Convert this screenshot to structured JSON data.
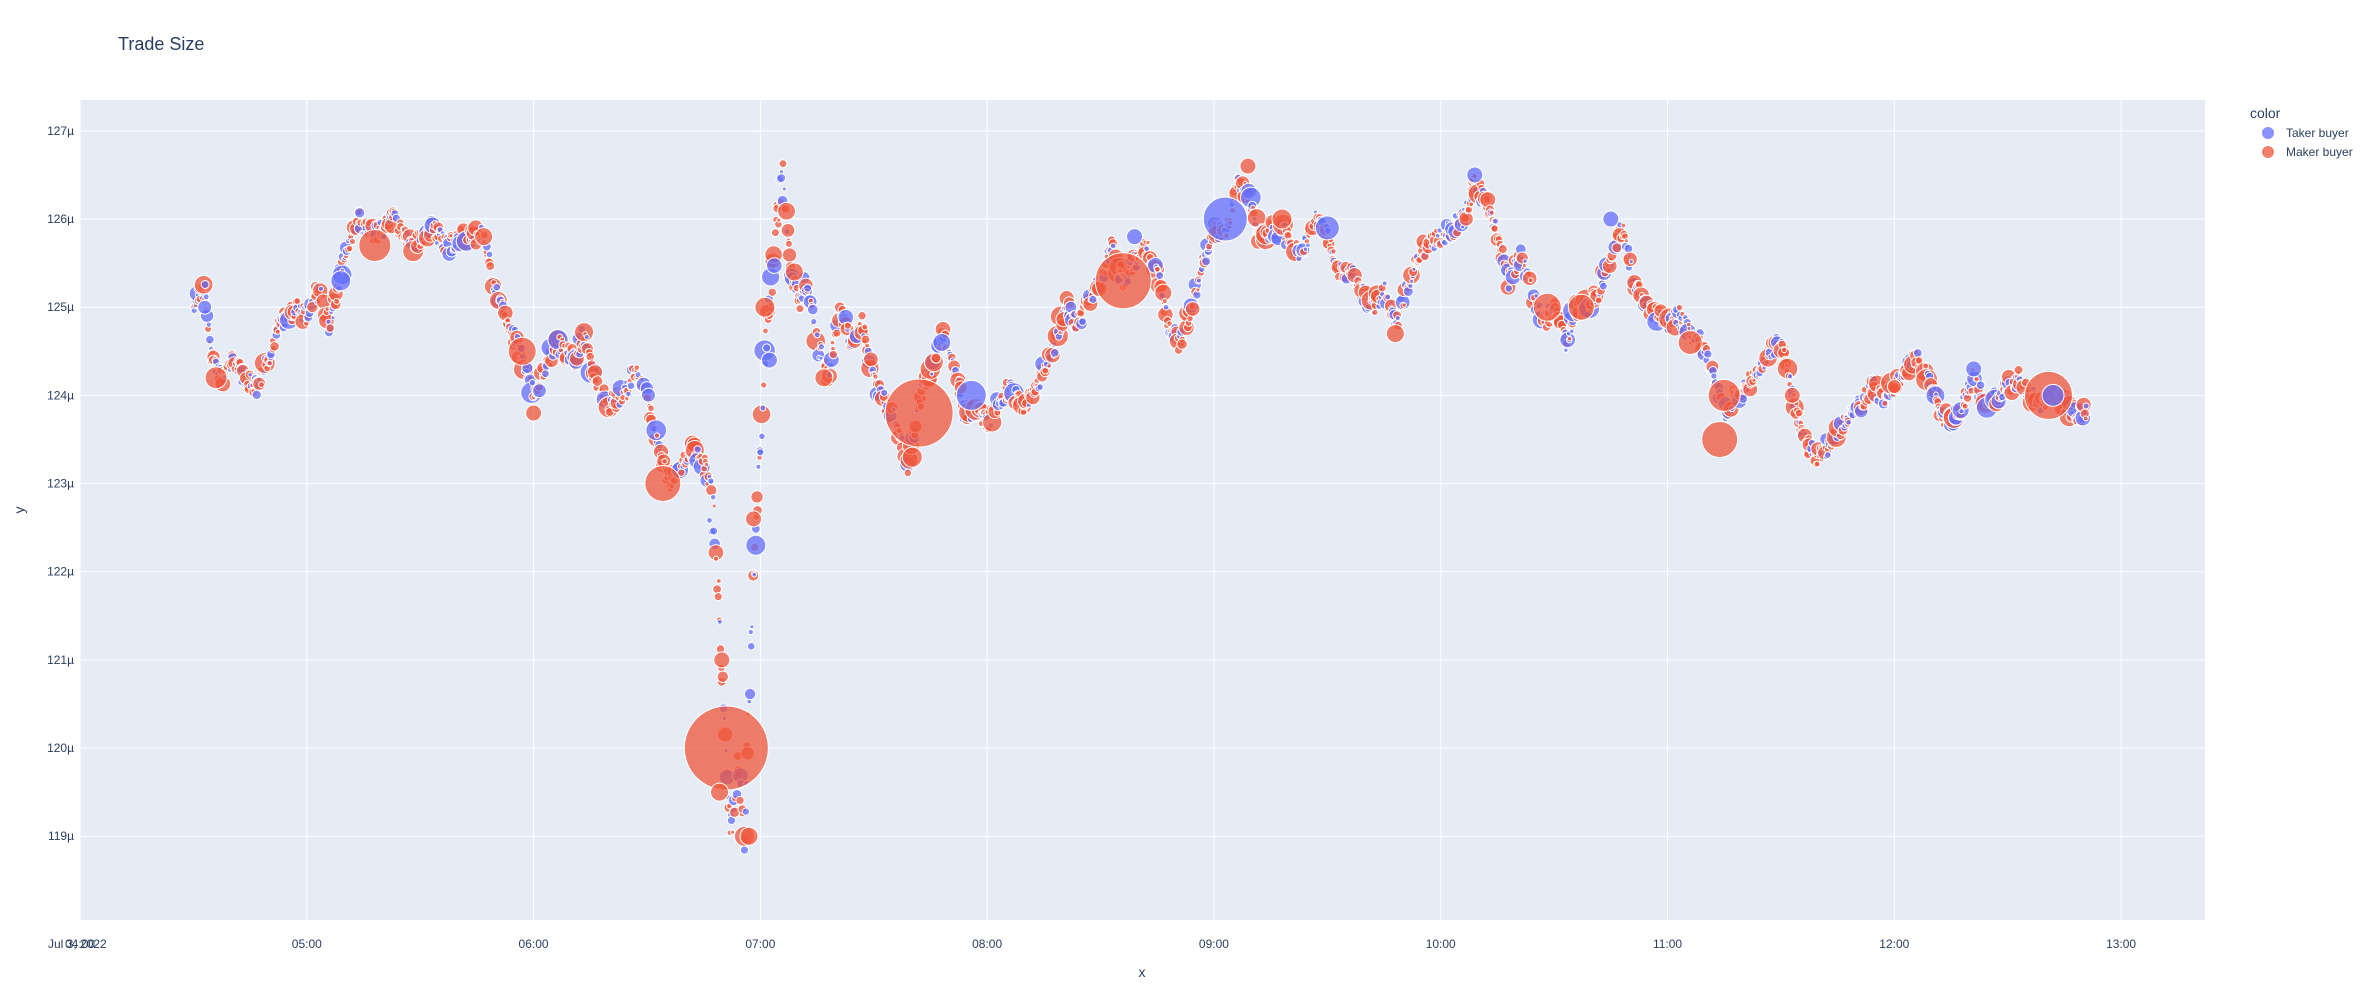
{
  "chart_data": {
    "type": "scatter",
    "title": "Trade Size",
    "xlabel": "x",
    "ylabel": "y",
    "x_date_label": "Jul 3, 2022",
    "x_ticks": [
      "04:00",
      "05:00",
      "06:00",
      "07:00",
      "08:00",
      "09:00",
      "10:00",
      "11:00",
      "12:00",
      "13:00"
    ],
    "x_range_hours": [
      4.0,
      13.37
    ],
    "y_ticks": [
      "119µ",
      "120µ",
      "121µ",
      "122µ",
      "123µ",
      "124µ",
      "125µ",
      "126µ",
      "127µ"
    ],
    "y_tick_values": [
      119,
      120,
      121,
      122,
      123,
      124,
      125,
      126,
      127
    ],
    "y_range": [
      118.05,
      127.35
    ],
    "y_unit": "µ",
    "legend_title": "color",
    "legend_position": "top-right",
    "colors": {
      "taker": "#636efa",
      "maker": "#ef553b",
      "plot_bg": "#e5ecf6",
      "grid": "#ffffff",
      "text": "#2a3f5f"
    },
    "series": [
      {
        "name": "Taker buyer",
        "key": "taker"
      },
      {
        "name": "Maker buyer",
        "key": "maker"
      }
    ],
    "price_path": [
      [
        4.5,
        125.0
      ],
      [
        4.55,
        125.2
      ],
      [
        4.58,
        124.4
      ],
      [
        4.62,
        124.2
      ],
      [
        4.68,
        124.4
      ],
      [
        4.72,
        124.2
      ],
      [
        4.78,
        124.1
      ],
      [
        4.83,
        124.4
      ],
      [
        4.88,
        124.8
      ],
      [
        4.95,
        125.0
      ],
      [
        5.0,
        124.9
      ],
      [
        5.05,
        125.2
      ],
      [
        5.1,
        124.8
      ],
      [
        5.17,
        125.6
      ],
      [
        5.22,
        126.0
      ],
      [
        5.3,
        125.8
      ],
      [
        5.38,
        126.0
      ],
      [
        5.45,
        125.7
      ],
      [
        5.55,
        125.9
      ],
      [
        5.62,
        125.7
      ],
      [
        5.7,
        125.8
      ],
      [
        5.78,
        125.8
      ],
      [
        5.83,
        125.2
      ],
      [
        5.9,
        124.8
      ],
      [
        5.95,
        124.4
      ],
      [
        6.0,
        124.0
      ],
      [
        6.05,
        124.3
      ],
      [
        6.1,
        124.6
      ],
      [
        6.18,
        124.4
      ],
      [
        6.22,
        124.7
      ],
      [
        6.28,
        124.1
      ],
      [
        6.33,
        123.9
      ],
      [
        6.4,
        124.0
      ],
      [
        6.45,
        124.3
      ],
      [
        6.5,
        124.0
      ],
      [
        6.55,
        123.4
      ],
      [
        6.6,
        123.0
      ],
      [
        6.65,
        123.2
      ],
      [
        6.7,
        123.4
      ],
      [
        6.75,
        123.2
      ],
      [
        6.8,
        122.5
      ],
      [
        6.83,
        121.0
      ],
      [
        6.85,
        120.0
      ],
      [
        6.87,
        119.0
      ],
      [
        6.9,
        119.8
      ],
      [
        6.93,
        119.0
      ],
      [
        6.95,
        120.5
      ],
      [
        6.97,
        122.0
      ],
      [
        7.0,
        123.5
      ],
      [
        7.03,
        124.8
      ],
      [
        7.07,
        125.9
      ],
      [
        7.1,
        126.5
      ],
      [
        7.13,
        125.5
      ],
      [
        7.17,
        125.0
      ],
      [
        7.2,
        125.3
      ],
      [
        7.25,
        124.6
      ],
      [
        7.3,
        124.2
      ],
      [
        7.35,
        125.0
      ],
      [
        7.4,
        124.6
      ],
      [
        7.45,
        124.8
      ],
      [
        7.5,
        124.2
      ],
      [
        7.55,
        123.9
      ],
      [
        7.6,
        123.7
      ],
      [
        7.65,
        123.2
      ],
      [
        7.7,
        123.9
      ],
      [
        7.75,
        124.3
      ],
      [
        7.8,
        124.7
      ],
      [
        7.85,
        124.4
      ],
      [
        7.9,
        123.8
      ],
      [
        7.95,
        123.8
      ],
      [
        8.0,
        123.7
      ],
      [
        8.05,
        123.9
      ],
      [
        8.1,
        124.1
      ],
      [
        8.15,
        123.9
      ],
      [
        8.2,
        124.0
      ],
      [
        8.25,
        124.3
      ],
      [
        8.3,
        124.6
      ],
      [
        8.35,
        125.0
      ],
      [
        8.4,
        124.8
      ],
      [
        8.45,
        125.1
      ],
      [
        8.5,
        125.3
      ],
      [
        8.55,
        125.7
      ],
      [
        8.6,
        125.3
      ],
      [
        8.65,
        125.5
      ],
      [
        8.7,
        125.7
      ],
      [
        8.75,
        125.4
      ],
      [
        8.8,
        124.8
      ],
      [
        8.85,
        124.6
      ],
      [
        8.9,
        125.0
      ],
      [
        8.95,
        125.5
      ],
      [
        9.0,
        125.9
      ],
      [
        9.05,
        125.8
      ],
      [
        9.1,
        126.4
      ],
      [
        9.15,
        126.3
      ],
      [
        9.2,
        125.8
      ],
      [
        9.3,
        125.9
      ],
      [
        9.35,
        125.6
      ],
      [
        9.4,
        125.7
      ],
      [
        9.45,
        126.0
      ],
      [
        9.5,
        125.8
      ],
      [
        9.55,
        125.4
      ],
      [
        9.6,
        125.4
      ],
      [
        9.65,
        125.2
      ],
      [
        9.7,
        125.0
      ],
      [
        9.75,
        125.2
      ],
      [
        9.8,
        124.8
      ],
      [
        9.85,
        125.2
      ],
      [
        9.9,
        125.6
      ],
      [
        9.95,
        125.7
      ],
      [
        10.0,
        125.8
      ],
      [
        10.05,
        125.9
      ],
      [
        10.1,
        126.0
      ],
      [
        10.15,
        126.4
      ],
      [
        10.2,
        126.2
      ],
      [
        10.25,
        125.8
      ],
      [
        10.3,
        125.3
      ],
      [
        10.35,
        125.6
      ],
      [
        10.4,
        125.2
      ],
      [
        10.45,
        124.8
      ],
      [
        10.5,
        125.0
      ],
      [
        10.55,
        124.6
      ],
      [
        10.6,
        125.0
      ],
      [
        10.65,
        125.0
      ],
      [
        10.7,
        125.2
      ],
      [
        10.75,
        125.6
      ],
      [
        10.8,
        125.9
      ],
      [
        10.85,
        125.3
      ],
      [
        10.9,
        125.0
      ],
      [
        10.95,
        124.9
      ],
      [
        11.0,
        124.8
      ],
      [
        11.05,
        124.9
      ],
      [
        11.1,
        124.7
      ],
      [
        11.15,
        124.6
      ],
      [
        11.2,
        124.2
      ],
      [
        11.25,
        123.8
      ],
      [
        11.3,
        124.0
      ],
      [
        11.35,
        124.1
      ],
      [
        11.4,
        124.3
      ],
      [
        11.45,
        124.5
      ],
      [
        11.5,
        124.6
      ],
      [
        11.55,
        124.0
      ],
      [
        11.6,
        123.5
      ],
      [
        11.65,
        123.3
      ],
      [
        11.7,
        123.4
      ],
      [
        11.75,
        123.6
      ],
      [
        11.8,
        123.8
      ],
      [
        11.85,
        123.9
      ],
      [
        11.9,
        124.1
      ],
      [
        11.95,
        124.0
      ],
      [
        12.0,
        124.1
      ],
      [
        12.05,
        124.3
      ],
      [
        12.1,
        124.4
      ],
      [
        12.15,
        124.2
      ],
      [
        12.2,
        123.8
      ],
      [
        12.25,
        123.7
      ],
      [
        12.3,
        123.9
      ],
      [
        12.35,
        124.2
      ],
      [
        12.4,
        123.9
      ],
      [
        12.45,
        124.0
      ],
      [
        12.5,
        124.1
      ],
      [
        12.55,
        124.2
      ],
      [
        12.6,
        124.0
      ],
      [
        12.65,
        123.9
      ],
      [
        12.7,
        124.0
      ],
      [
        12.75,
        123.9
      ],
      [
        12.8,
        123.8
      ],
      [
        12.85,
        123.8
      ]
    ],
    "large_trades": [
      {
        "t": 6.85,
        "y": 120.0,
        "side": "maker",
        "size": 42
      },
      {
        "t": 7.7,
        "y": 123.8,
        "side": "maker",
        "size": 34
      },
      {
        "t": 8.6,
        "y": 125.3,
        "side": "maker",
        "size": 28
      },
      {
        "t": 9.05,
        "y": 126.0,
        "side": "taker",
        "size": 22
      },
      {
        "t": 12.68,
        "y": 124.0,
        "side": "maker",
        "size": 24
      },
      {
        "t": 6.57,
        "y": 123.0,
        "side": "maker",
        "size": 18
      },
      {
        "t": 11.23,
        "y": 123.5,
        "side": "maker",
        "size": 18
      },
      {
        "t": 11.25,
        "y": 124.0,
        "side": "maker",
        "size": 16
      },
      {
        "t": 5.3,
        "y": 125.7,
        "side": "maker",
        "size": 16
      },
      {
        "t": 7.93,
        "y": 124.0,
        "side": "taker",
        "size": 15
      },
      {
        "t": 5.95,
        "y": 124.5,
        "side": "maker",
        "size": 14
      },
      {
        "t": 10.47,
        "y": 125.0,
        "side": "maker",
        "size": 14
      },
      {
        "t": 10.62,
        "y": 125.0,
        "side": "maker",
        "size": 13
      },
      {
        "t": 9.5,
        "y": 125.9,
        "side": "taker",
        "size": 12
      },
      {
        "t": 11.1,
        "y": 124.6,
        "side": "maker",
        "size": 12
      },
      {
        "t": 4.6,
        "y": 124.2,
        "side": "maker",
        "size": 11
      },
      {
        "t": 5.15,
        "y": 125.3,
        "side": "taker",
        "size": 10
      },
      {
        "t": 7.67,
        "y": 123.3,
        "side": "maker",
        "size": 10
      },
      {
        "t": 6.93,
        "y": 119.0,
        "side": "maker",
        "size": 10
      },
      {
        "t": 6.98,
        "y": 122.3,
        "side": "taker",
        "size": 10
      },
      {
        "t": 7.02,
        "y": 125.0,
        "side": "maker",
        "size": 10
      },
      {
        "t": 9.3,
        "y": 126.0,
        "side": "maker",
        "size": 10
      },
      {
        "t": 10.15,
        "y": 126.5,
        "side": "taker",
        "size": 8
      },
      {
        "t": 9.8,
        "y": 124.7,
        "side": "maker",
        "size": 9
      },
      {
        "t": 10.75,
        "y": 126.0,
        "side": "taker",
        "size": 8
      },
      {
        "t": 12.35,
        "y": 124.3,
        "side": "taker",
        "size": 8
      },
      {
        "t": 8.65,
        "y": 125.8,
        "side": "taker",
        "size": 8
      },
      {
        "t": 4.55,
        "y": 125.0,
        "side": "taker",
        "size": 7
      },
      {
        "t": 5.78,
        "y": 125.8,
        "side": "maker",
        "size": 9
      },
      {
        "t": 6.0,
        "y": 123.8,
        "side": "maker",
        "size": 8
      },
      {
        "t": 7.8,
        "y": 124.6,
        "side": "taker",
        "size": 9
      },
      {
        "t": 9.15,
        "y": 126.6,
        "side": "maker",
        "size": 8
      },
      {
        "t": 11.55,
        "y": 124.0,
        "side": "maker",
        "size": 8
      },
      {
        "t": 12.0,
        "y": 124.1,
        "side": "maker",
        "size": 7
      },
      {
        "t": 7.28,
        "y": 124.2,
        "side": "maker",
        "size": 9
      },
      {
        "t": 6.83,
        "y": 121.0,
        "side": "maker",
        "size": 8
      },
      {
        "t": 6.82,
        "y": 119.5,
        "side": "maker",
        "size": 9
      },
      {
        "t": 6.95,
        "y": 119.0,
        "side": "maker",
        "size": 9
      },
      {
        "t": 6.97,
        "y": 122.6,
        "side": "maker",
        "size": 8
      },
      {
        "t": 7.15,
        "y": 125.4,
        "side": "maker",
        "size": 9
      },
      {
        "t": 7.04,
        "y": 124.4,
        "side": "taker",
        "size": 8
      },
      {
        "t": 12.7,
        "y": 124.0,
        "side": "taker",
        "size": 11
      }
    ]
  }
}
